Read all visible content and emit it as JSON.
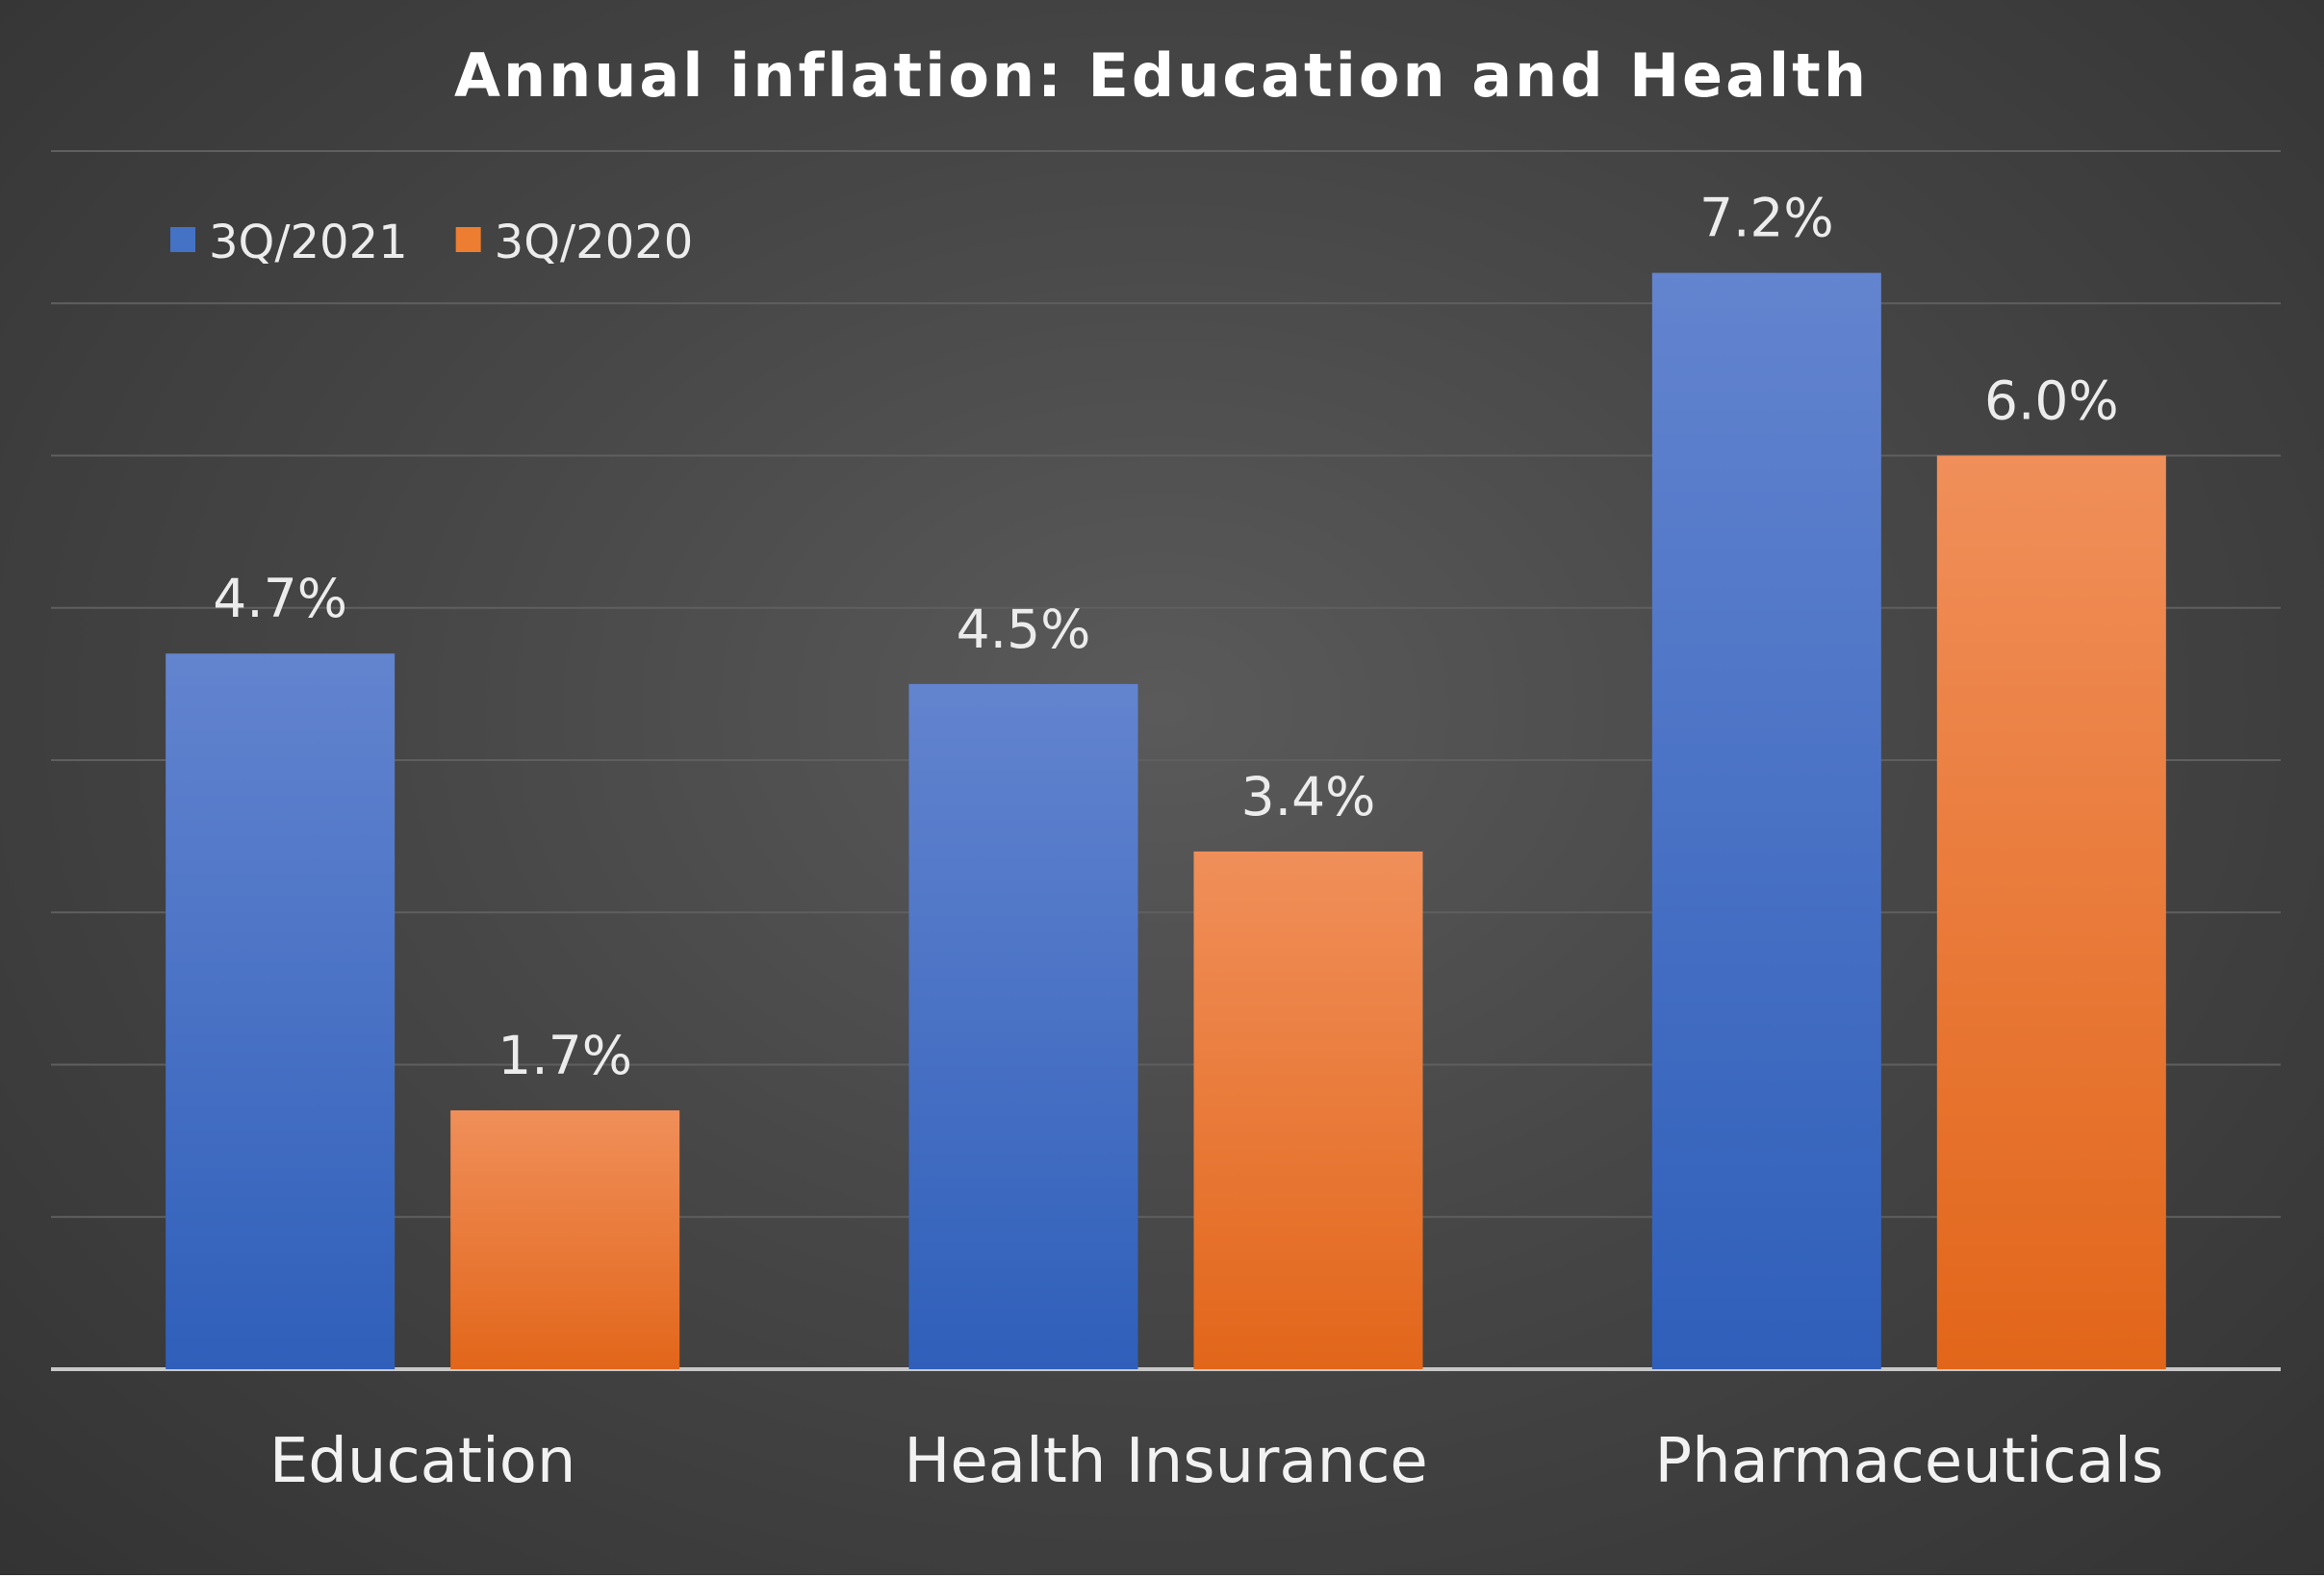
{
  "chart_data": {
    "type": "bar",
    "title": "Annual inflation: Education and Health",
    "xlabel": "",
    "ylabel": "",
    "categories": [
      "Education",
      "Health Insurance",
      "Pharmaceuticals"
    ],
    "series": [
      {
        "name": "3Q/2021",
        "values": [
          4.7,
          4.5,
          7.2
        ],
        "labels": [
          "4.7%",
          "4.5%",
          "7.2%"
        ],
        "color": "#4472C4"
      },
      {
        "name": "3Q/2020",
        "values": [
          1.7,
          3.4,
          6.0
        ],
        "labels": [
          "1.7%",
          "3.4%",
          "6.0%"
        ],
        "color": "#ED7D31"
      }
    ],
    "ylim": [
      0,
      8
    ],
    "y_gridline_step": 1,
    "y_axis_labels_shown": false,
    "grid": true,
    "legend_position": "top-left",
    "background": "#444444"
  }
}
